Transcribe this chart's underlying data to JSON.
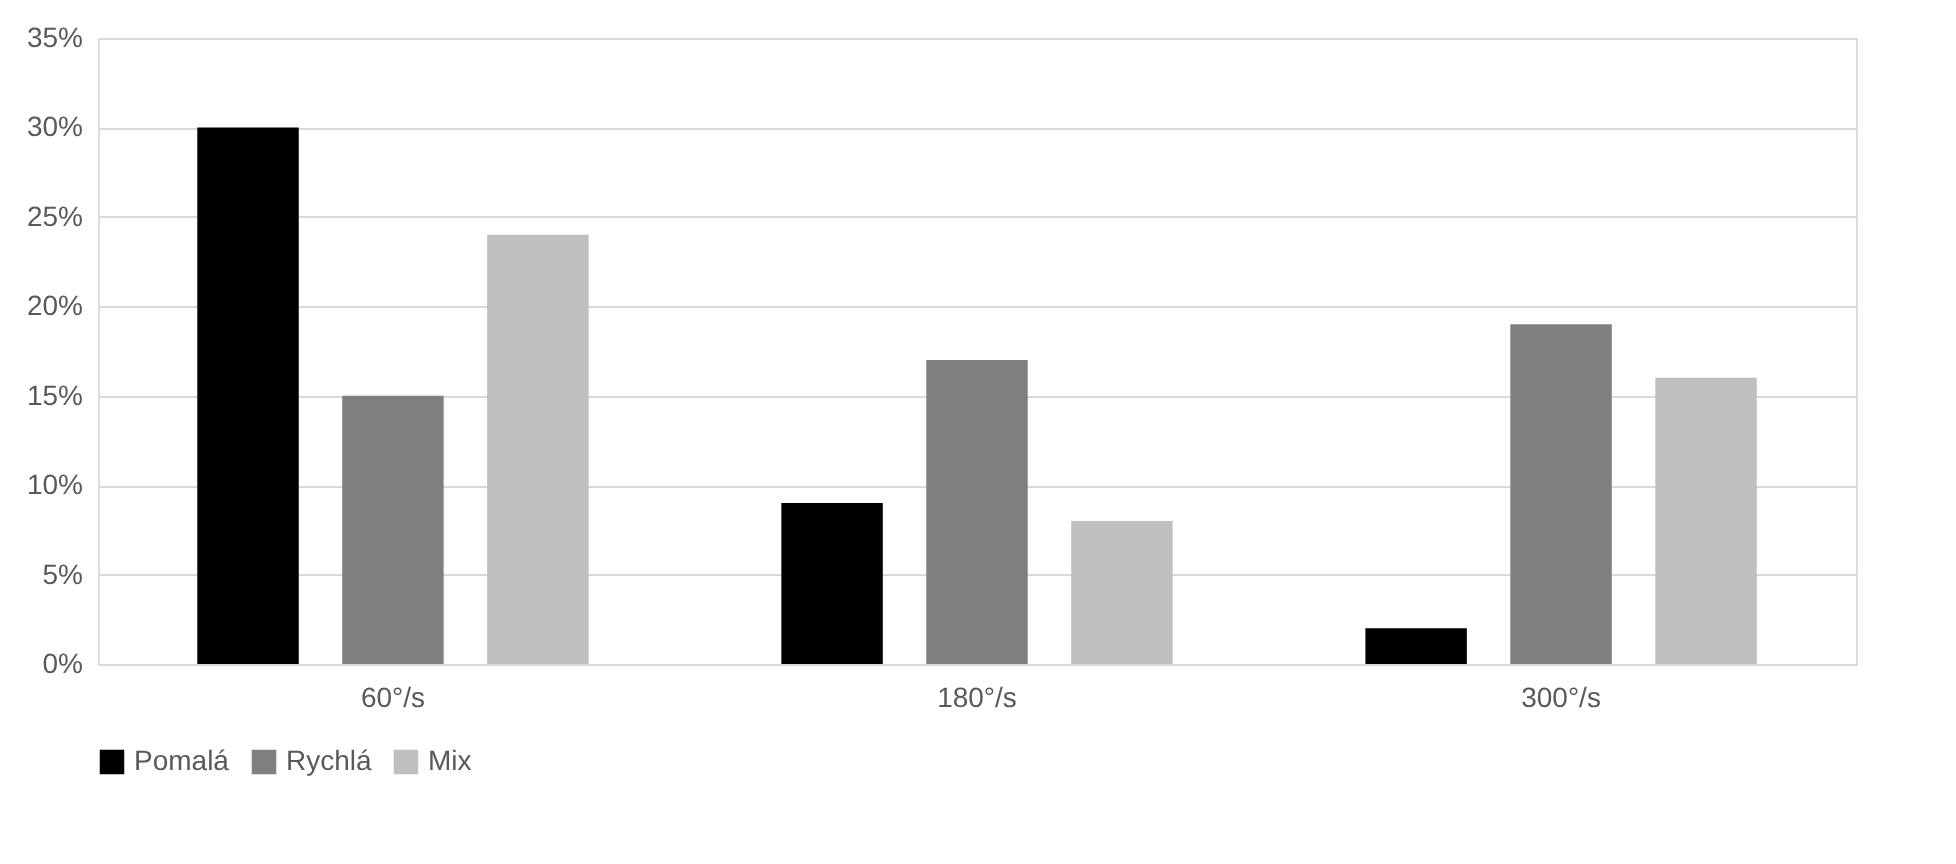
{
  "chart_data": {
    "type": "bar",
    "categories": [
      "60°/s",
      "180°/s",
      "300°/s"
    ],
    "series": [
      {
        "name": "Pomalá",
        "color": "#000000",
        "values": [
          30,
          9,
          2
        ]
      },
      {
        "name": "Rychlá",
        "color": "#7f7f7f",
        "values": [
          15,
          17,
          19
        ]
      },
      {
        "name": "Mix",
        "color": "#bfbfbf",
        "values": [
          24,
          8,
          16
        ]
      }
    ],
    "ylim": [
      0,
      35
    ],
    "yticks": [
      {
        "value": 0,
        "label": "0%"
      },
      {
        "value": 5,
        "label": "5%"
      },
      {
        "value": 10,
        "label": "10%"
      },
      {
        "value": 15,
        "label": "15%"
      },
      {
        "value": 20,
        "label": "20%"
      },
      {
        "value": 25,
        "label": "25%"
      },
      {
        "value": 30,
        "label": "30%"
      },
      {
        "value": 35,
        "label": "35%"
      }
    ],
    "grid": "y",
    "legend": "bottom"
  }
}
